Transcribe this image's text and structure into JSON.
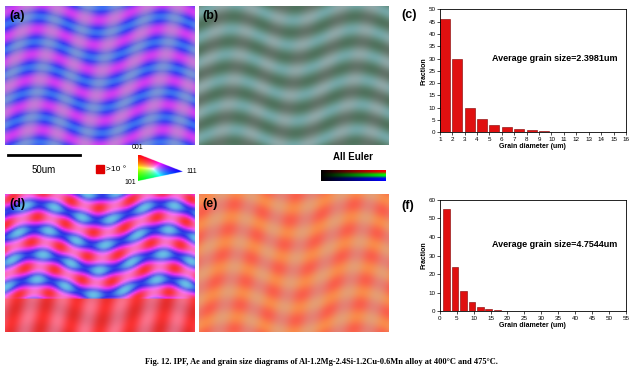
{
  "panels": [
    "(a)",
    "(b)",
    "(c)",
    "(d)",
    "(e)",
    "(f)"
  ],
  "scale_bar": "50um",
  "ipf_legend": {
    "marker": ">10 °",
    "color": "#e00000",
    "corners": [
      "001",
      "101",
      "111"
    ]
  },
  "euler_legend": "All Euler",
  "caption": "Fig. 12. IPF, Ae and grain size diagrams of Al-1.2Mg-2.4Si-1.2Cu-0.6Mn alloy at 400°C and 475°C.",
  "chart_data": [
    {
      "type": "histogram",
      "annotation": "Average grain size=2.3981um",
      "x_label": "Grain diameter (um)",
      "y_label": "Fraction",
      "color": "#e01010",
      "bins": [
        1,
        2,
        3,
        4,
        5,
        6,
        7,
        8,
        9,
        10,
        11,
        12
      ],
      "counts": [
        46,
        30,
        10,
        5.5,
        3,
        2,
        1.2,
        0.8,
        0.5,
        0.3,
        0.2
      ],
      "xlim": [
        1,
        16
      ],
      "xticks": [
        1,
        2,
        3,
        4,
        5,
        6,
        7,
        8,
        9,
        10,
        11,
        12,
        13,
        14,
        15,
        16
      ],
      "ylim": [
        0,
        50
      ],
      "yticks": [
        0,
        5,
        10,
        15,
        20,
        25,
        30,
        35,
        40,
        45,
        50
      ]
    },
    {
      "type": "histogram",
      "annotation": "Average grain size=4.7544um",
      "x_label": "Grain diameter (um)",
      "y_label": "Fraction",
      "color": "#e01010",
      "bins": [
        1,
        3.5,
        6,
        8.5,
        11,
        13.5,
        16,
        18.5,
        21,
        23.5
      ],
      "counts": [
        55,
        24,
        11,
        5,
        2.5,
        1.2,
        0.6,
        0.3,
        0.2
      ],
      "xlim": [
        0,
        55
      ],
      "xticks": [
        0,
        5,
        10,
        15,
        20,
        25,
        30,
        35,
        40,
        45,
        50,
        55
      ],
      "ylim": [
        0,
        60
      ],
      "yticks": [
        0,
        10,
        20,
        30,
        40,
        50,
        60
      ]
    }
  ]
}
